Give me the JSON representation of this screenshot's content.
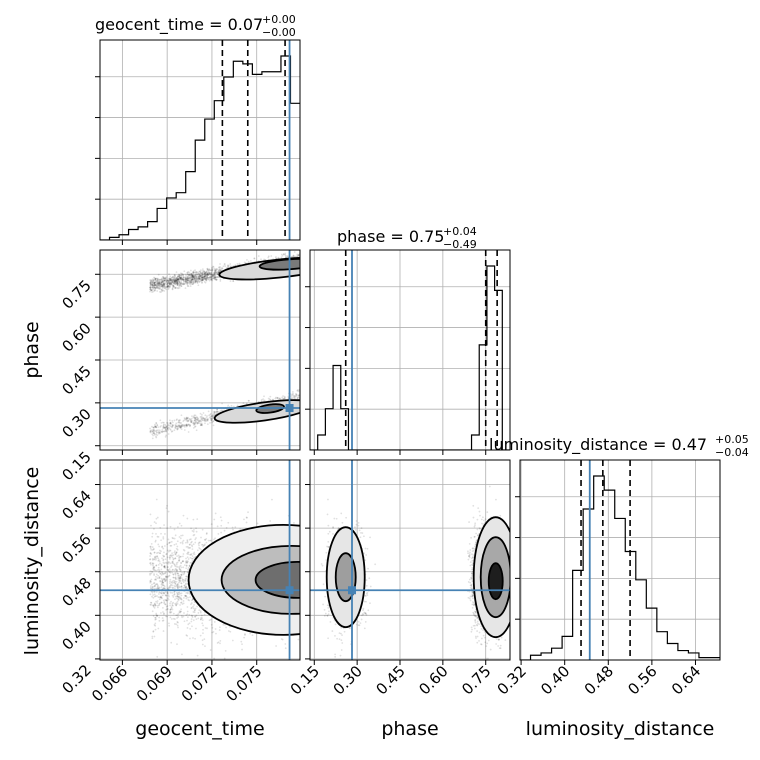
{
  "chart_data": {
    "type": "corner",
    "params": [
      "geocent_time",
      "phase",
      "luminosity_distance"
    ],
    "truths": {
      "geocent_time": 0.0772,
      "phase": 0.282,
      "luminosity_distance": 0.446
    },
    "ranges": {
      "geocent_time": [
        0.0645,
        0.0779
      ],
      "phase": [
        0.135,
        0.835
      ],
      "luminosity_distance": [
        0.318,
        0.685
      ]
    },
    "titles": [
      {
        "param": "geocent_time",
        "label": "geocent_time = 0.07",
        "sup": "+0.00",
        "sub": "−0.00"
      },
      {
        "param": "phase",
        "label": "phase = 0.75",
        "sup": "+0.04",
        "sub": "−0.49"
      },
      {
        "param": "luminosity_distance",
        "label": "luminosity_distance = 0.47",
        "sup": "+0.05",
        "sub": "−0.04"
      }
    ],
    "quantiles": {
      "geocent_time": [
        0.0727,
        0.0744,
        0.0769
      ],
      "phase": [
        0.26,
        0.75,
        0.79
      ],
      "luminosity_distance": [
        0.43,
        0.47,
        0.52
      ]
    },
    "ticks": {
      "geocent_time": {
        "values": [
          0.066,
          0.069,
          0.072,
          0.075
        ],
        "labels": [
          "0.066",
          "0.069",
          "0.072",
          "0.075"
        ]
      },
      "phase": {
        "values": [
          0.15,
          0.3,
          0.45,
          0.6,
          0.75
        ],
        "labels": [
          "0.15",
          "0.30",
          "0.45",
          "0.60",
          "0.75"
        ]
      },
      "luminosity_distance": {
        "values": [
          0.32,
          0.4,
          0.48,
          0.56,
          0.64
        ],
        "labels": [
          "0.32",
          "0.40",
          "0.48",
          "0.56",
          "0.64"
        ]
      }
    },
    "histograms": {
      "geocent_time": [
        0,
        1,
        2,
        4,
        5,
        7,
        12,
        16,
        18,
        26,
        38,
        46,
        53,
        62,
        68,
        67,
        63,
        64,
        64,
        70,
        52
      ],
      "phase": [
        0,
        8,
        22,
        45,
        22,
        0,
        0,
        0,
        0,
        0,
        0,
        0,
        0,
        0,
        0,
        0,
        0,
        0,
        0,
        0,
        0,
        8,
        56,
        98,
        85,
        0
      ],
      "luminosity_distance": [
        0,
        2,
        3,
        5,
        10,
        38,
        64,
        78,
        72,
        60,
        46,
        34,
        22,
        12,
        7,
        4,
        3,
        1,
        1
      ]
    },
    "grid": true
  }
}
